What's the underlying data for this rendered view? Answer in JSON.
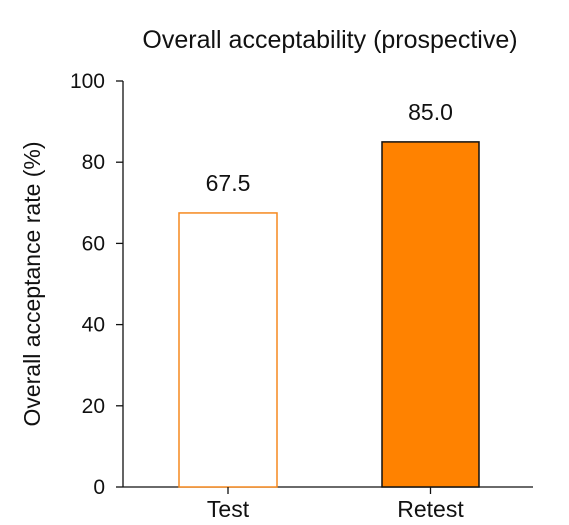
{
  "chart_data": {
    "type": "bar",
    "title": "Overall acceptability (prospective)",
    "xlabel": "",
    "ylabel": "Overall acceptance rate (%)",
    "categories": [
      "Test",
      "Retest"
    ],
    "values": [
      67.5,
      85.0
    ],
    "value_labels": [
      "67.5",
      "85.0"
    ],
    "ylim": [
      0,
      100
    ],
    "yticks": [
      0,
      20,
      40,
      60,
      80,
      100
    ],
    "ytick_labels": [
      "0",
      "20",
      "40",
      "60",
      "80",
      "100"
    ],
    "grid": false,
    "bar_styles": [
      {
        "fill": "#ffffff",
        "stroke": "#f5891f"
      },
      {
        "fill": "#ff8200",
        "stroke": "#111111"
      }
    ]
  }
}
